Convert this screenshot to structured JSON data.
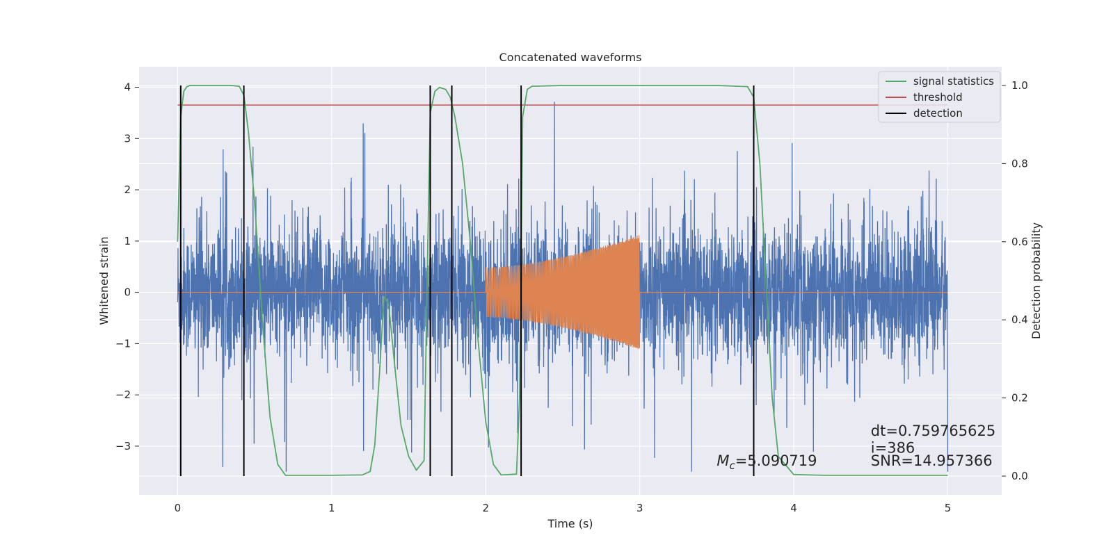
{
  "chart_data": {
    "type": "line",
    "title": "Concatenated waveforms",
    "xlabel": "Time (s)",
    "ylabel": "Whitened strain",
    "y2label": "Detection probability",
    "xlim": [
      -0.25,
      5.35
    ],
    "ylim": [
      -3.95,
      4.4
    ],
    "y2lim": [
      -0.048,
      1.048
    ],
    "x_ticks": [
      0,
      1,
      2,
      3,
      4,
      5
    ],
    "x_tick_labels": [
      "0",
      "1",
      "2",
      "3",
      "4",
      "5"
    ],
    "y_ticks": [
      -3,
      -2,
      -1,
      0,
      1,
      2,
      3,
      4
    ],
    "y_tick_labels": [
      "−3",
      "−2",
      "−1",
      "0",
      "1",
      "2",
      "3",
      "4"
    ],
    "y2_ticks": [
      0.0,
      0.2,
      0.4,
      0.6,
      0.8,
      1.0
    ],
    "y2_tick_labels": [
      "0.0",
      "0.2",
      "0.4",
      "0.6",
      "0.8",
      "1.0"
    ],
    "grid": true,
    "legend_position": "top-right",
    "legend": [
      {
        "label": "signal statistics",
        "color": "#55a868"
      },
      {
        "label": "threshold",
        "color": "#c44e52"
      },
      {
        "label": "detection",
        "color": "#000000"
      }
    ],
    "series": [
      {
        "kind": "noise",
        "color": "#4c72b0",
        "x_range": [
          0,
          5
        ],
        "typical_amplitude": 1.0,
        "extreme_range": [
          -3.5,
          4.05
        ]
      },
      {
        "kind": "injected_chirp",
        "color": "#dd8452",
        "x_range": [
          2.0,
          3.0
        ],
        "start_amplitude": 0.48,
        "end_amplitude": 1.12,
        "baseline": 0
      },
      {
        "name": "signal statistics",
        "axis": "right",
        "color": "#55a868",
        "x": [
          0.0,
          0.02,
          0.04,
          0.06,
          0.08,
          0.1,
          0.2,
          0.35,
          0.4,
          0.43,
          0.46,
          0.5,
          0.55,
          0.6,
          0.65,
          0.7,
          1.0,
          1.2,
          1.25,
          1.28,
          1.31,
          1.34,
          1.37,
          1.41,
          1.45,
          1.5,
          1.55,
          1.6,
          1.62,
          1.64,
          1.67,
          1.7,
          1.74,
          1.77,
          1.8,
          1.85,
          1.9,
          1.95,
          2.0,
          2.05,
          2.1,
          2.2,
          2.22,
          2.24,
          2.27,
          2.3,
          2.5,
          3.0,
          3.5,
          3.7,
          3.74,
          3.78,
          3.82,
          3.86,
          3.9,
          4.0,
          4.1,
          4.2,
          4.5,
          5.0
        ],
        "y": [
          0.6,
          0.92,
          0.985,
          0.997,
          1.0,
          1.0,
          1.0,
          1.0,
          0.998,
          0.975,
          0.88,
          0.7,
          0.4,
          0.15,
          0.03,
          0.002,
          0.002,
          0.003,
          0.012,
          0.08,
          0.26,
          0.46,
          0.44,
          0.28,
          0.13,
          0.05,
          0.015,
          0.04,
          0.5,
          0.93,
          0.985,
          0.995,
          0.99,
          0.97,
          0.92,
          0.8,
          0.6,
          0.35,
          0.14,
          0.03,
          0.003,
          0.005,
          0.2,
          0.92,
          0.99,
          0.998,
          1.0,
          1.0,
          1.0,
          0.997,
          0.97,
          0.8,
          0.5,
          0.2,
          0.05,
          0.004,
          0.003,
          0.002,
          0.002,
          0.002
        ]
      },
      {
        "name": "threshold",
        "axis": "right",
        "color": "#c44e52",
        "x": [
          0,
          5
        ],
        "y": [
          0.95,
          0.95
        ]
      },
      {
        "name": "detection",
        "color": "#000000",
        "x": [
          0.02,
          0.43,
          1.64,
          1.78,
          2.23,
          3.74
        ],
        "y_range": [
          0.0,
          1.0
        ]
      }
    ],
    "annotations": [
      {
        "text": "dt=0.759765625",
        "x": 4.5,
        "y": -2.8
      },
      {
        "text": "i=386",
        "x": 4.5,
        "y": -3.13
      },
      {
        "text": "SNR=14.957366",
        "x": 4.5,
        "y": -3.38
      },
      {
        "text_prefix": "M",
        "text_sub": "c",
        "text_value": "=5.090719",
        "x": 3.5,
        "y": -3.38
      }
    ]
  }
}
